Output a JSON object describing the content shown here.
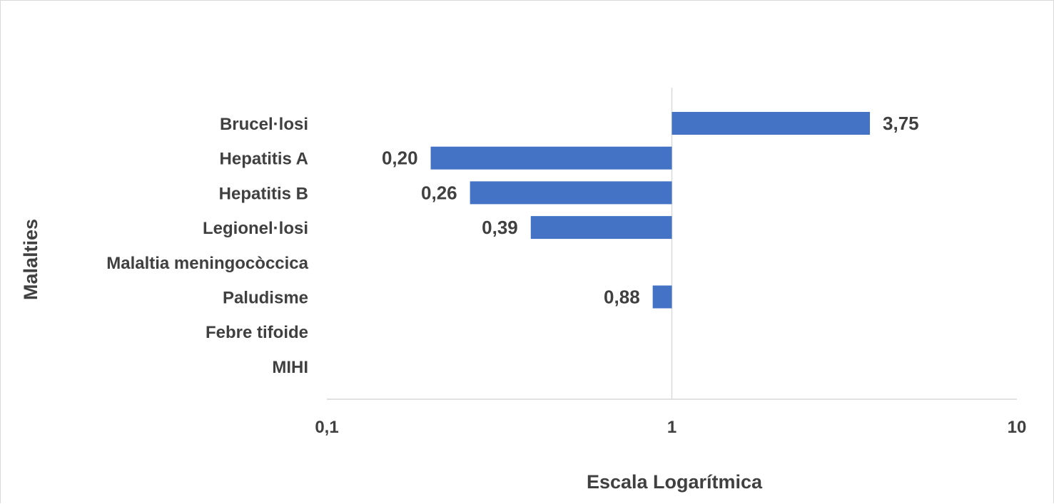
{
  "chart_data": {
    "type": "bar",
    "orientation": "horizontal",
    "x_scale": "log",
    "xlim": [
      0.1,
      10
    ],
    "x_ticks": [
      "0,1",
      "1",
      "10"
    ],
    "x_tick_values": [
      0.1,
      1,
      10
    ],
    "baseline": 1,
    "xlabel": "Escala Logarítmica",
    "ylabel": "Malalties",
    "categories": [
      "Brucel·losi",
      "Hepatitis A",
      "Hepatitis B",
      "Legionel·losi",
      "Malaltia meningocòccica",
      "Paludisme",
      "Febre tifoide",
      "MIHI"
    ],
    "values": [
      3.75,
      0.2,
      0.26,
      0.39,
      null,
      0.88,
      null,
      null
    ],
    "data_labels": [
      "3,75",
      "0,20",
      "0,26",
      "0,39",
      "",
      "0,88",
      "",
      ""
    ],
    "bar_color": "#4472c4",
    "gridlines": false,
    "legend": "none"
  }
}
